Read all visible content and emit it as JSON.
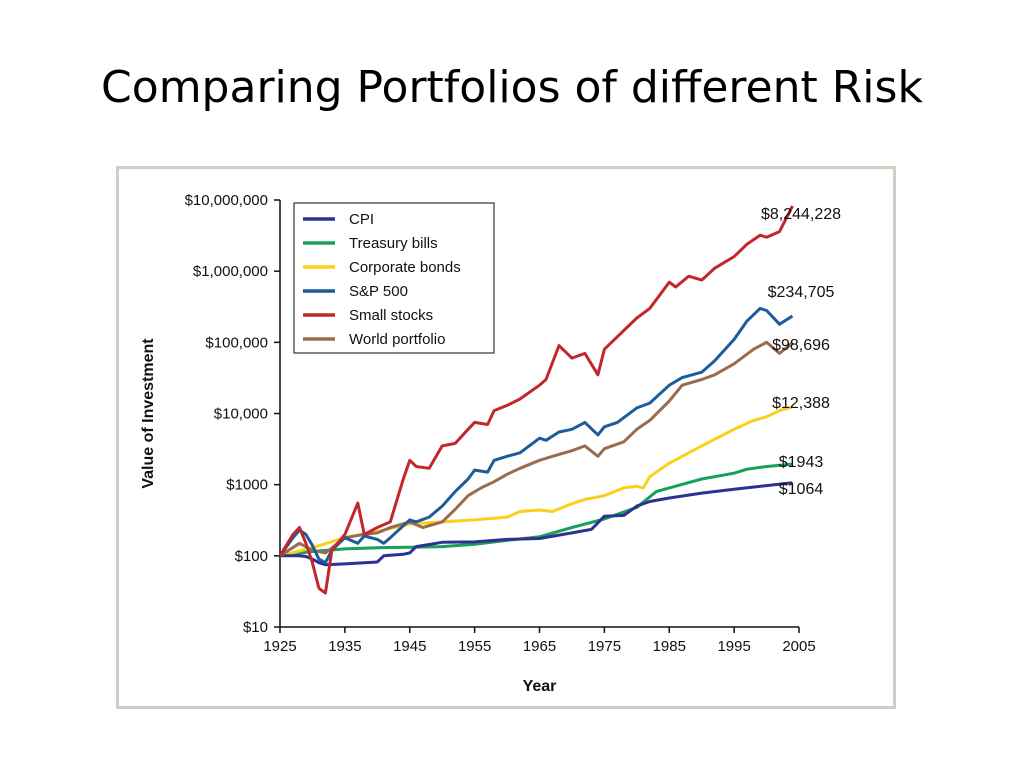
{
  "slide": {
    "title": "Comparing Portfolios of different Risk"
  },
  "chart_data": {
    "type": "line",
    "title": "",
    "xlabel": "Year",
    "ylabel": "Value of Investment",
    "xlim": [
      1925,
      2005
    ],
    "ylim": [
      10,
      10000000
    ],
    "yscale": "log",
    "x_ticks": [
      "1925",
      "1935",
      "1945",
      "1955",
      "1965",
      "1975",
      "1985",
      "1995",
      "2005"
    ],
    "y_ticks": [
      {
        "value": 10,
        "label": "$10"
      },
      {
        "value": 100,
        "label": "$100"
      },
      {
        "value": 1000,
        "label": "$1000"
      },
      {
        "value": 10000,
        "label": "$10,000"
      },
      {
        "value": 100000,
        "label": "$100,000"
      },
      {
        "value": 1000000,
        "label": "$1,000,000"
      },
      {
        "value": 10000000,
        "label": "$10,000,000"
      }
    ],
    "legend_position": "top-left",
    "grid": false,
    "series": [
      {
        "name": "CPI",
        "color": "#2e3092",
        "end_label": "$1064",
        "points": [
          [
            1925,
            100
          ],
          [
            1928,
            100
          ],
          [
            1929,
            98
          ],
          [
            1930,
            90
          ],
          [
            1931,
            80
          ],
          [
            1932,
            75
          ],
          [
            1935,
            77
          ],
          [
            1938,
            80
          ],
          [
            1940,
            82
          ],
          [
            1941,
            100
          ],
          [
            1944,
            105
          ],
          [
            1945,
            110
          ],
          [
            1946,
            135
          ],
          [
            1950,
            155
          ],
          [
            1955,
            157
          ],
          [
            1960,
            170
          ],
          [
            1965,
            175
          ],
          [
            1970,
            210
          ],
          [
            1973,
            235
          ],
          [
            1975,
            360
          ],
          [
            1978,
            370
          ],
          [
            1980,
            500
          ],
          [
            1982,
            580
          ],
          [
            1985,
            650
          ],
          [
            1990,
            760
          ],
          [
            1995,
            860
          ],
          [
            2000,
            970
          ],
          [
            2004,
            1064
          ]
        ]
      },
      {
        "name": "Treasury bills",
        "color": "#16a05a",
        "end_label": "$1943",
        "points": [
          [
            1925,
            100
          ],
          [
            1930,
            115
          ],
          [
            1935,
            125
          ],
          [
            1940,
            130
          ],
          [
            1945,
            132
          ],
          [
            1950,
            135
          ],
          [
            1955,
            145
          ],
          [
            1960,
            165
          ],
          [
            1965,
            185
          ],
          [
            1970,
            250
          ],
          [
            1975,
            330
          ],
          [
            1980,
            480
          ],
          [
            1983,
            800
          ],
          [
            1985,
            900
          ],
          [
            1990,
            1200
          ],
          [
            1995,
            1450
          ],
          [
            1997,
            1650
          ],
          [
            2000,
            1800
          ],
          [
            2004,
            1943
          ]
        ]
      },
      {
        "name": "Corporate bonds",
        "color": "#f9d11d",
        "end_label": "$12,388",
        "points": [
          [
            1925,
            100
          ],
          [
            1930,
            130
          ],
          [
            1935,
            180
          ],
          [
            1940,
            220
          ],
          [
            1945,
            280
          ],
          [
            1950,
            300
          ],
          [
            1955,
            320
          ],
          [
            1960,
            350
          ],
          [
            1962,
            420
          ],
          [
            1965,
            440
          ],
          [
            1967,
            420
          ],
          [
            1970,
            540
          ],
          [
            1972,
            620
          ],
          [
            1975,
            700
          ],
          [
            1978,
            900
          ],
          [
            1980,
            950
          ],
          [
            1981,
            900
          ],
          [
            1982,
            1300
          ],
          [
            1985,
            2000
          ],
          [
            1987,
            2500
          ],
          [
            1990,
            3500
          ],
          [
            1995,
            6000
          ],
          [
            1998,
            8000
          ],
          [
            2000,
            9000
          ],
          [
            2002,
            11000
          ],
          [
            2004,
            12388
          ]
        ]
      },
      {
        "name": "S&P 500",
        "color": "#1c5c9c",
        "end_label": "$234,705",
        "points": [
          [
            1925,
            100
          ],
          [
            1927,
            180
          ],
          [
            1928,
            230
          ],
          [
            1929,
            200
          ],
          [
            1930,
            140
          ],
          [
            1931,
            90
          ],
          [
            1932,
            80
          ],
          [
            1933,
            120
          ],
          [
            1935,
            180
          ],
          [
            1937,
            150
          ],
          [
            1938,
            190
          ],
          [
            1940,
            170
          ],
          [
            1941,
            150
          ],
          [
            1942,
            180
          ],
          [
            1945,
            320
          ],
          [
            1946,
            300
          ],
          [
            1948,
            350
          ],
          [
            1950,
            500
          ],
          [
            1952,
            800
          ],
          [
            1954,
            1200
          ],
          [
            1955,
            1600
          ],
          [
            1957,
            1500
          ],
          [
            1958,
            2200
          ],
          [
            1960,
            2500
          ],
          [
            1962,
            2800
          ],
          [
            1965,
            4500
          ],
          [
            1966,
            4200
          ],
          [
            1968,
            5500
          ],
          [
            1970,
            6000
          ],
          [
            1972,
            7500
          ],
          [
            1974,
            5000
          ],
          [
            1975,
            6500
          ],
          [
            1977,
            7500
          ],
          [
            1980,
            12000
          ],
          [
            1982,
            14000
          ],
          [
            1985,
            25000
          ],
          [
            1987,
            32000
          ],
          [
            1990,
            38000
          ],
          [
            1992,
            55000
          ],
          [
            1995,
            110000
          ],
          [
            1997,
            200000
          ],
          [
            1999,
            300000
          ],
          [
            2000,
            280000
          ],
          [
            2002,
            180000
          ],
          [
            2004,
            234705
          ]
        ]
      },
      {
        "name": "Small stocks",
        "color": "#c1272d",
        "end_label": "$8,244,228",
        "points": [
          [
            1925,
            100
          ],
          [
            1927,
            200
          ],
          [
            1928,
            250
          ],
          [
            1929,
            150
          ],
          [
            1930,
            80
          ],
          [
            1931,
            35
          ],
          [
            1932,
            30
          ],
          [
            1933,
            120
          ],
          [
            1935,
            200
          ],
          [
            1937,
            550
          ],
          [
            1938,
            200
          ],
          [
            1940,
            250
          ],
          [
            1942,
            300
          ],
          [
            1944,
            1200
          ],
          [
            1945,
            2200
          ],
          [
            1946,
            1800
          ],
          [
            1948,
            1700
          ],
          [
            1950,
            3500
          ],
          [
            1952,
            3800
          ],
          [
            1954,
            6000
          ],
          [
            1955,
            7500
          ],
          [
            1957,
            7000
          ],
          [
            1958,
            11000
          ],
          [
            1960,
            13000
          ],
          [
            1962,
            16000
          ],
          [
            1965,
            25000
          ],
          [
            1966,
            30000
          ],
          [
            1968,
            90000
          ],
          [
            1970,
            60000
          ],
          [
            1972,
            70000
          ],
          [
            1974,
            35000
          ],
          [
            1975,
            80000
          ],
          [
            1977,
            120000
          ],
          [
            1980,
            220000
          ],
          [
            1982,
            300000
          ],
          [
            1985,
            700000
          ],
          [
            1986,
            600000
          ],
          [
            1988,
            850000
          ],
          [
            1990,
            750000
          ],
          [
            1992,
            1100000
          ],
          [
            1995,
            1600000
          ],
          [
            1997,
            2400000
          ],
          [
            1999,
            3200000
          ],
          [
            2000,
            3000000
          ],
          [
            2002,
            3600000
          ],
          [
            2004,
            8244228
          ]
        ]
      },
      {
        "name": "World portfolio",
        "color": "#9a6b4e",
        "end_label": "$98,696",
        "points": [
          [
            1925,
            100
          ],
          [
            1928,
            150
          ],
          [
            1930,
            120
          ],
          [
            1932,
            110
          ],
          [
            1935,
            180
          ],
          [
            1938,
            200
          ],
          [
            1940,
            210
          ],
          [
            1942,
            250
          ],
          [
            1945,
            300
          ],
          [
            1947,
            250
          ],
          [
            1950,
            300
          ],
          [
            1952,
            450
          ],
          [
            1954,
            700
          ],
          [
            1956,
            900
          ],
          [
            1958,
            1100
          ],
          [
            1960,
            1400
          ],
          [
            1962,
            1700
          ],
          [
            1965,
            2200
          ],
          [
            1967,
            2500
          ],
          [
            1970,
            3000
          ],
          [
            1972,
            3500
          ],
          [
            1974,
            2500
          ],
          [
            1975,
            3200
          ],
          [
            1978,
            4000
          ],
          [
            1980,
            6000
          ],
          [
            1982,
            8000
          ],
          [
            1985,
            15000
          ],
          [
            1987,
            25000
          ],
          [
            1990,
            30000
          ],
          [
            1992,
            35000
          ],
          [
            1995,
            50000
          ],
          [
            1998,
            80000
          ],
          [
            2000,
            100000
          ],
          [
            2002,
            70000
          ],
          [
            2004,
            98696
          ]
        ]
      }
    ]
  }
}
